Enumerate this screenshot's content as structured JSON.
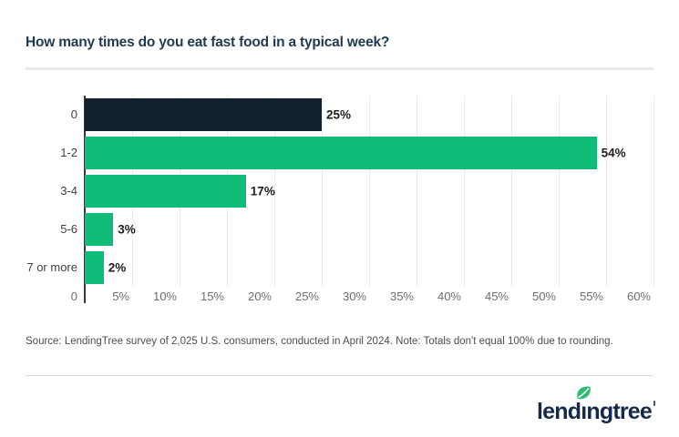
{
  "title": "How many times do you eat fast food in a typical week?",
  "chart_data": {
    "type": "bar",
    "orientation": "horizontal",
    "title": "How many times do you eat fast food in a typical week?",
    "categories": [
      "0",
      "1-2",
      "3-4",
      "5-6",
      "7 or more"
    ],
    "values": [
      25,
      54,
      17,
      3,
      2
    ],
    "value_labels": [
      "25%",
      "54%",
      "17%",
      "3%",
      "2%"
    ],
    "xlabel": "",
    "ylabel": "",
    "xlim": [
      0,
      60
    ],
    "x_ticks": [
      "0",
      "5%",
      "10%",
      "15%",
      "20%",
      "25%",
      "30%",
      "35%",
      "40%",
      "45%",
      "50%",
      "55%",
      "60%"
    ],
    "grid": true,
    "legend": "none",
    "bar_colors": [
      "#13202e",
      "#10bc78",
      "#10bc78",
      "#10bc78",
      "#10bc78"
    ]
  },
  "source_note": "Source: LendingTree survey of 2,025 U.S. consumers, conducted in April 2024. Note: Totals don't equal 100% due to rounding.",
  "logo": {
    "left": "lend",
    "dotless_i": "ı",
    "right": "ngtree"
  },
  "colors": {
    "navy_bar": "#13202e",
    "green_bar": "#10bc78",
    "title_navy": "#1e3a52",
    "logo_navy": "#152a4a",
    "leaf_green": "#2abd73",
    "gridline": "#ececec",
    "axis_line": "#3a3a3a",
    "divider": "#e9e9e9"
  }
}
